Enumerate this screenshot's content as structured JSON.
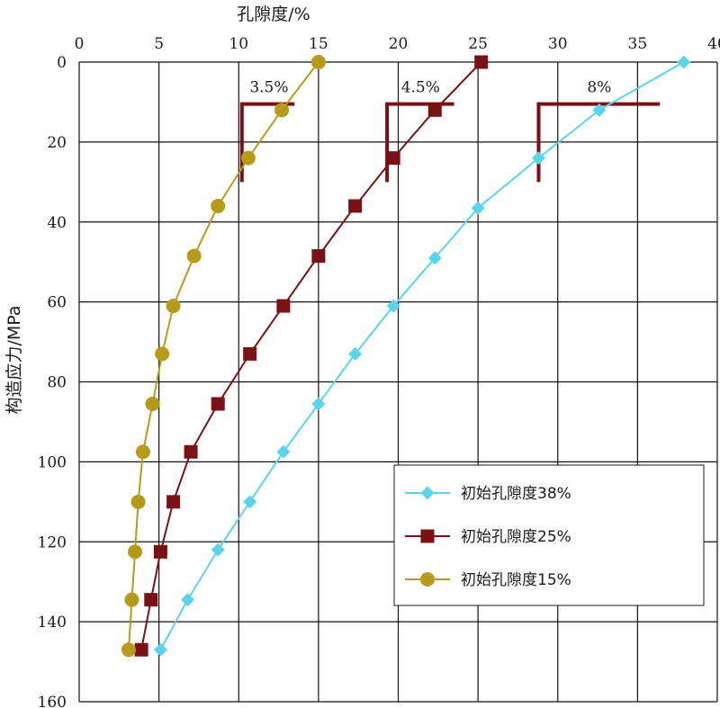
{
  "chart_data": {
    "type": "line",
    "xlabel": "孔隙度/%",
    "ylabel": "构造应力/MPa",
    "xlim": [
      0,
      40
    ],
    "ylim": [
      0,
      160
    ],
    "x_axis_position": "top",
    "y_axis_inverted": true,
    "grid": true,
    "x_ticks": [
      0,
      5,
      10,
      15,
      20,
      25,
      30,
      35,
      40
    ],
    "y_ticks": [
      0,
      20,
      40,
      60,
      80,
      100,
      120,
      140,
      160
    ],
    "legend": {
      "placement": "lower-right",
      "entries": [
        "初始孔隙度38%",
        "初始孔隙度25%",
        "初始孔隙度15%"
      ]
    },
    "series": [
      {
        "name": "初始孔隙度38%",
        "marker": "diamond",
        "color": "#5bd3ec",
        "points": [
          [
            37.9,
            0
          ],
          [
            32.6,
            12
          ],
          [
            28.8,
            24
          ],
          [
            25.0,
            36.5
          ],
          [
            22.3,
            49
          ],
          [
            19.7,
            61
          ],
          [
            17.3,
            73
          ],
          [
            15.0,
            85.5
          ],
          [
            12.8,
            97.5
          ],
          [
            10.7,
            110
          ],
          [
            8.7,
            122
          ],
          [
            6.8,
            134.5
          ],
          [
            5.1,
            147
          ]
        ]
      },
      {
        "name": "初始孔隙度25%",
        "marker": "square",
        "color": "#7a1115",
        "points": [
          [
            25.2,
            0
          ],
          [
            22.3,
            12
          ],
          [
            19.7,
            24
          ],
          [
            17.3,
            36
          ],
          [
            15.0,
            48.5
          ],
          [
            12.8,
            61
          ],
          [
            10.7,
            73
          ],
          [
            8.7,
            85.5
          ],
          [
            7.0,
            97.5
          ],
          [
            5.9,
            110
          ],
          [
            5.1,
            122.5
          ],
          [
            4.5,
            134.5
          ],
          [
            3.9,
            147
          ]
        ]
      },
      {
        "name": "初始孔隙度15%",
        "marker": "circle",
        "color": "#b89a1a",
        "points": [
          [
            15.0,
            0
          ],
          [
            12.7,
            12
          ],
          [
            10.6,
            24
          ],
          [
            8.7,
            36
          ],
          [
            7.2,
            48.5
          ],
          [
            5.9,
            61
          ],
          [
            5.2,
            73
          ],
          [
            4.6,
            85.5
          ],
          [
            4.0,
            97.5
          ],
          [
            3.7,
            110
          ],
          [
            3.5,
            122.5
          ],
          [
            3.3,
            134.5
          ],
          [
            3.1,
            147
          ]
        ]
      }
    ],
    "annotations": [
      {
        "label": "3.5%",
        "x_from": 10.2,
        "x_to": 13.5,
        "y_from": 10.5,
        "y_to": 30,
        "label_x": 11.9,
        "label_y": 7.5
      },
      {
        "label": "4.5%",
        "x_from": 19.3,
        "x_to": 23.5,
        "y_from": 10.5,
        "y_to": 30,
        "label_x": 21.4,
        "label_y": 7.5
      },
      {
        "label": "8%",
        "x_from": 28.8,
        "x_to": 36.4,
        "y_from": 10.5,
        "y_to": 30,
        "label_x": 32.6,
        "label_y": 7.5
      }
    ],
    "annotation_color": "#7a1115"
  }
}
